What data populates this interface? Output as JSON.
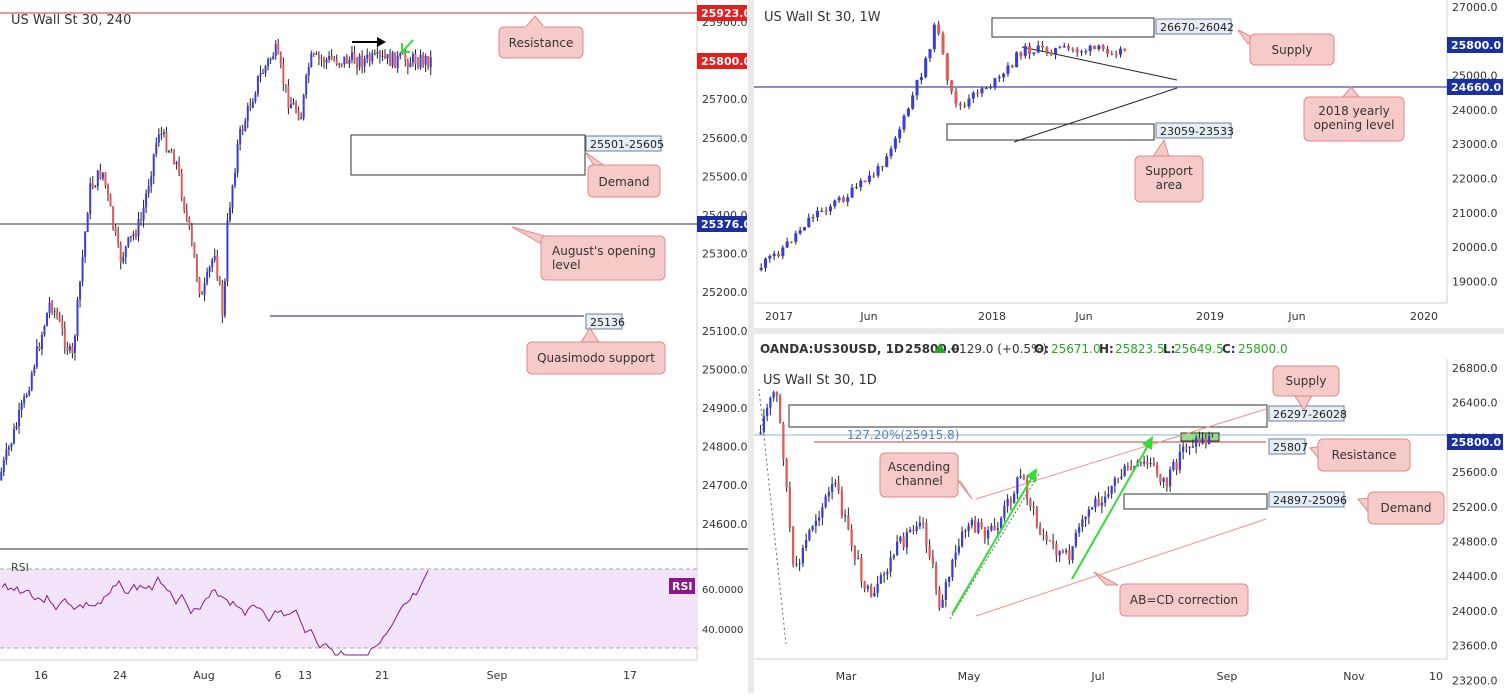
{
  "colors": {
    "bull": "#3c3cd6",
    "bear": "#e05a5a",
    "callout_bg": "#f7caca",
    "callout_border": "#e08888",
    "resistance": "#c43c3c",
    "hline_blue": "#1a1aa8",
    "rsi_line": "#8a1a8a",
    "rsi_bg": "#f3e3fb",
    "green": "#33dd33",
    "price_tag": "#e21f1f",
    "blue_tag": "#1a2fa0"
  },
  "left_panel": {
    "title": "US Wall St 30, 240",
    "price_axis": [
      "25900.0",
      "25800.0",
      "25700.0",
      "25600.0",
      "25500.0",
      "25400.0",
      "25300.0",
      "25200.0",
      "25100.0",
      "25000.0",
      "24900.0",
      "24800.0",
      "24700.0",
      "24600.0"
    ],
    "tags": {
      "resistance": "25923.0",
      "current": "25800.0",
      "august_open": "25376.0"
    },
    "boxes": {
      "demand_label": "25501-25605",
      "qm_label": "25136"
    },
    "callouts": {
      "resistance": "Resistance",
      "demand": "Demand",
      "august": "August's opening level",
      "quasimodo": "Quasimodo support"
    },
    "rsi": {
      "label": "RSI",
      "axis": [
        "60.0000",
        "40.0000"
      ],
      "tag": "RSI"
    },
    "x_axis": [
      "16",
      "24",
      "Aug",
      "6",
      "13",
      "21",
      "Sep",
      "17"
    ],
    "icons": [
      "arrow-right-icon",
      "arrow-down-left-icon"
    ]
  },
  "top_right": {
    "title": "US Wall St 30, 1W",
    "price_axis": [
      "27000.0",
      "26000.0",
      "25000.0",
      "24000.0",
      "23000.0",
      "22000.0",
      "21000.0",
      "20000.0",
      "19000.0"
    ],
    "tags": {
      "current": "25800.0",
      "yearly_open": "24660.0"
    },
    "boxes": {
      "supply_label": "26670-26042",
      "support_label": "23059-23533"
    },
    "callouts": {
      "supply": "Supply",
      "yearly": "2018 yearly opening level",
      "support": "Support area"
    },
    "x_axis": [
      "2017",
      "Jun",
      "2018",
      "Jun",
      "2019",
      "Jun",
      "2020"
    ]
  },
  "bottom_right": {
    "header": {
      "symbol": "OANDA:US30USD, 1D",
      "last": "25800.0",
      "change": "+129.0 (+0.5%)",
      "o_label": "O:",
      "o": "25671.0",
      "h_label": "H:",
      "h": "25823.5",
      "l_label": "L:",
      "l": "25649.5",
      "c_label": "C:",
      "c": "25800.0"
    },
    "title": "US Wall St 30, 1D",
    "price_axis": [
      "26800.0",
      "26400.0",
      "26000.0",
      "25600.0",
      "25200.0",
      "24800.0",
      "24400.0",
      "24000.0",
      "23600.0",
      "23200.0"
    ],
    "tags": {
      "current": "25800.0"
    },
    "fib": "127.20%(25915.8)",
    "boxes": {
      "supply_label": "26297-26028",
      "resistance_label": "25807",
      "demand_label": "24897-25096"
    },
    "callouts": {
      "supply": "Supply",
      "resistance": "Resistance",
      "demand": "Demand",
      "channel": "Ascending channel",
      "abcd": "AB=CD correction"
    },
    "x_axis": [
      "Mar",
      "May",
      "Jul",
      "Sep",
      "Nov",
      "10"
    ]
  },
  "chart_data": [
    {
      "type": "candlestick",
      "title": "US Wall St 30, 240",
      "ylim": [
        24500,
        25960
      ],
      "levels": {
        "resistance": 25923,
        "august_open": 25376,
        "quasimodo": 25136,
        "demand": [
          25501,
          25605
        ]
      }
    },
    {
      "type": "line",
      "title": "RSI",
      "yticks": [
        60,
        40
      ]
    },
    {
      "type": "candlestick",
      "title": "US Wall St 30, 1W",
      "ylim": [
        18500,
        27100
      ],
      "levels": {
        "yearly_open": 24660,
        "supply": [
          26042,
          26670
        ],
        "support": [
          23059,
          23533
        ]
      }
    },
    {
      "type": "candlestick",
      "title": "US Wall St 30, 1D",
      "ylim": [
        22900,
        26900
      ],
      "levels": {
        "resistance": 25807,
        "fib_127": 25915.8,
        "supply": [
          26028,
          26297
        ],
        "demand": [
          24897,
          25096
        ]
      }
    }
  ]
}
